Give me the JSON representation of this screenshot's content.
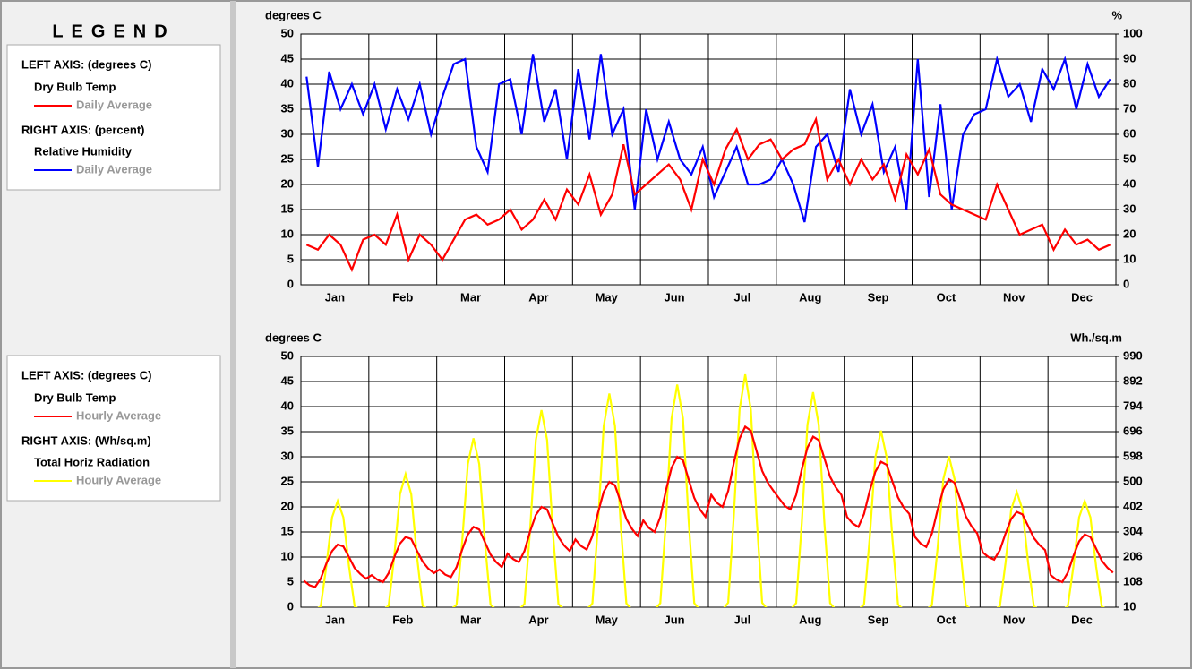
{
  "legend": {
    "title": "LEGEND",
    "boxes": [
      {
        "left_axis": "LEFT AXIS: (degrees C)",
        "left_name": "Dry Bulb Temp",
        "left_stat": "Daily Average",
        "right_axis": "RIGHT AXIS: (percent)",
        "right_name": "Relative Humidity",
        "right_stat": "Daily Average"
      },
      {
        "left_axis": "LEFT AXIS: (degrees C)",
        "left_name": "Dry Bulb Temp",
        "left_stat": "Hourly Average",
        "right_axis": "RIGHT AXIS: (Wh/sq.m)",
        "right_name": "Total Horiz Radiation",
        "right_stat": "Hourly Average"
      }
    ]
  },
  "chart_data": [
    {
      "type": "line",
      "ylabel": "degrees C",
      "y2label": "%",
      "categories": [
        "Jan",
        "Feb",
        "Mar",
        "Apr",
        "May",
        "Jun",
        "Jul",
        "Aug",
        "Sep",
        "Oct",
        "Nov",
        "Dec"
      ],
      "ylim": [
        0,
        50
      ],
      "yticks": [
        0,
        5,
        10,
        15,
        20,
        25,
        30,
        35,
        40,
        45,
        50
      ],
      "y2lim": [
        0,
        100
      ],
      "y2ticks": [
        0,
        10,
        20,
        30,
        40,
        50,
        60,
        70,
        80,
        90,
        100
      ],
      "grid": true,
      "series": [
        {
          "name": "Dry Bulb Temp",
          "color": "#ff0000",
          "values": [
            [
              8,
              7,
              10,
              8,
              3,
              9
            ],
            [
              10,
              8,
              14,
              5,
              10,
              8
            ],
            [
              5,
              9,
              13,
              14,
              12,
              13
            ],
            [
              15,
              11,
              13,
              17,
              13,
              19
            ],
            [
              16,
              22,
              14,
              18,
              28,
              18
            ],
            [
              20,
              22,
              24,
              21,
              15,
              25
            ],
            [
              20,
              27,
              31,
              25,
              28,
              29
            ],
            [
              25,
              27,
              28,
              33,
              21,
              25
            ],
            [
              20,
              25,
              21,
              24,
              17,
              26
            ],
            [
              22,
              27,
              18,
              16,
              15,
              14
            ],
            [
              13,
              20,
              15,
              10,
              11,
              12
            ],
            [
              7,
              11,
              8,
              9,
              7,
              8
            ]
          ]
        },
        {
          "name": "Relative Humidity",
          "color": "#0000ff",
          "axis": "y2",
          "values": [
            [
              83,
              47,
              85,
              70,
              80,
              68
            ],
            [
              80,
              62,
              78,
              66,
              80,
              60
            ],
            [
              75,
              88,
              90,
              55,
              45,
              80
            ],
            [
              82,
              60,
              92,
              65,
              78,
              50
            ],
            [
              86,
              58,
              92,
              60,
              70,
              30
            ],
            [
              70,
              50,
              65,
              50,
              44,
              55
            ],
            [
              35,
              45,
              55,
              40,
              40,
              42
            ],
            [
              50,
              40,
              25,
              55,
              60,
              45
            ],
            [
              78,
              60,
              72,
              45,
              55,
              30
            ],
            [
              90,
              35,
              72,
              30,
              60,
              68
            ],
            [
              70,
              90,
              75,
              80,
              65,
              86
            ],
            [
              78,
              90,
              70,
              88,
              75,
              82
            ]
          ]
        }
      ]
    },
    {
      "type": "line",
      "ylabel": "degrees C",
      "y2label": "Wh./sq.m",
      "categories": [
        "Jan",
        "Feb",
        "Mar",
        "Apr",
        "May",
        "Jun",
        "Jul",
        "Aug",
        "Sep",
        "Oct",
        "Nov",
        "Dec"
      ],
      "ylim": [
        0,
        50
      ],
      "yticks": [
        0,
        5,
        10,
        15,
        20,
        25,
        30,
        35,
        40,
        45,
        50
      ],
      "y2lim": [
        10,
        990
      ],
      "y2ticks": [
        10,
        108,
        206,
        304,
        402,
        500,
        598,
        696,
        794,
        892,
        990
      ],
      "grid": true,
      "series": [
        {
          "name": "Dry Bulb Temp",
          "color": "#ff0000",
          "values": [
            [
              5.3,
              4.4,
              4,
              5.7,
              8.7,
              11.2,
              12.5,
              12.1,
              10,
              7.8,
              6.6,
              5.7
            ],
            [
              6.4,
              5.5,
              5,
              6.8,
              10,
              12.7,
              14,
              13.6,
              11.3,
              9.1,
              7.7,
              6.8
            ],
            [
              7.5,
              6.5,
              6,
              8,
              11.5,
              14.5,
              16,
              15.5,
              13,
              10.5,
              9,
              8
            ],
            [
              10.7,
              9.6,
              9,
              11.2,
              15.1,
              18.4,
              20,
              19.5,
              16.7,
              14,
              12.3,
              11.2
            ],
            [
              13.5,
              12.2,
              11.5,
              14.2,
              18.9,
              23,
              25,
              24.3,
              21,
              17.6,
              15.6,
              14.2
            ],
            [
              17.3,
              15.8,
              15,
              18,
              23.3,
              27.8,
              30,
              29.3,
              25.5,
              21.8,
              19.5,
              18
            ],
            [
              22.4,
              20.8,
              20,
              23.2,
              28.8,
              33.6,
              36,
              35.2,
              31.2,
              27.2,
              24.8,
              23.2
            ],
            [
              21.7,
              20.2,
              19.5,
              22.4,
              27.5,
              31.8,
              34,
              33.3,
              29.7,
              26,
              23.9,
              22.4
            ],
            [
              18,
              16.7,
              16,
              18.6,
              23.2,
              27,
              29,
              28.4,
              25.1,
              21.9,
              19.9,
              18.6
            ],
            [
              14,
              12.7,
              12,
              14.7,
              19.4,
              23.5,
              25.5,
              24.8,
              21.5,
              18.1,
              16.1,
              14.7
            ],
            [
              10.9,
              10,
              9.5,
              11.4,
              14.7,
              17.6,
              19,
              18.5,
              16.2,
              13.8,
              12.4,
              11.4
            ],
            [
              6.4,
              5.5,
              5,
              6.9,
              10.2,
              13.1,
              14.5,
              14,
              11.7,
              9.3,
              7.9,
              6.9
            ]
          ]
        },
        {
          "name": "Total Horiz Radiation",
          "color": "#ffff00",
          "axis": "y2",
          "values": [
            [
              0,
              0,
              0,
              13,
              170,
              361,
              425,
              361,
              170,
              13,
              0,
              0
            ],
            [
              0,
              0,
              0,
              16,
              212,
              451,
              530,
              451,
              212,
              16,
              0,
              0
            ],
            [
              0,
              0,
              0,
              20,
              268,
              570,
              670,
              570,
              268,
              20,
              0,
              0
            ],
            [
              0,
              0,
              0,
              23,
              312,
              663,
              780,
              663,
              312,
              23,
              0,
              0
            ],
            [
              0,
              0,
              0,
              25,
              338,
              718,
              845,
              718,
              338,
              25,
              0,
              0
            ],
            [
              0,
              0,
              0,
              26,
              352,
              748,
              880,
              748,
              352,
              26,
              0,
              0
            ],
            [
              0,
              0,
              0,
              28,
              368,
              782,
              920,
              782,
              368,
              28,
              0,
              0
            ],
            [
              0,
              0,
              0,
              26,
              340,
              723,
              850,
              723,
              340,
              26,
              0,
              0
            ],
            [
              0,
              0,
              0,
              21,
              280,
              595,
              700,
              595,
              280,
              21,
              0,
              0
            ],
            [
              0,
              0,
              0,
              18,
              240,
              510,
              600,
              510,
              240,
              18,
              0,
              0
            ],
            [
              0,
              0,
              0,
              14,
              184,
              391,
              460,
              391,
              184,
              14,
              0,
              0
            ],
            [
              0,
              0,
              0,
              13,
              170,
              361,
              425,
              361,
              170,
              13,
              0,
              0
            ]
          ]
        }
      ]
    }
  ]
}
